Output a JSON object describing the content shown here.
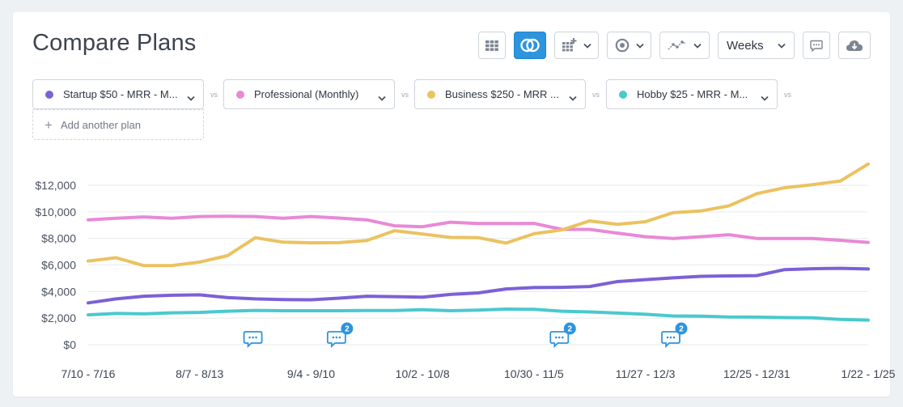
{
  "page": {
    "title": "Compare Plans"
  },
  "toolbar": {
    "grid_icon": "table-grid-icon",
    "compare_icon": "overlap-circles-icon",
    "calendar_icon": "calendar-add-icon",
    "target_icon": "target-icon",
    "line_icon": "line-chart-icon",
    "interval_label": "Weeks",
    "comment_icon": "comment-icon",
    "download_icon": "cloud-download-icon"
  },
  "plans": [
    {
      "label": "Startup $50 - MRR - M...",
      "color": "#7b61d6"
    },
    {
      "label": "Professional (Monthly)",
      "color": "#e889d6"
    },
    {
      "label": "Business $250 - MRR ...",
      "color": "#ebc260"
    },
    {
      "label": "Hobby $25 - MRR - M...",
      "color": "#4ac9cd"
    }
  ],
  "vs_label": "vs",
  "add_plan_label": "Add another plan",
  "annotations": [
    {
      "week_index": 6,
      "count": ""
    },
    {
      "week_index": 9,
      "count": "2"
    },
    {
      "week_index": 17,
      "count": "2"
    },
    {
      "week_index": 21,
      "count": "2"
    }
  ],
  "chart_data": {
    "type": "line",
    "title": "",
    "xlabel": "",
    "ylabel": "",
    "ylim": [
      0,
      12000
    ],
    "yticks": [
      0,
      2000,
      4000,
      6000,
      8000,
      10000,
      12000
    ],
    "ytick_labels": [
      "$0",
      "$2,000",
      "$4,000",
      "$6,000",
      "$8,000",
      "$10,000",
      "$12,000"
    ],
    "xtick_labels": [
      {
        "index": 0,
        "label": "7/10 - 7/16"
      },
      {
        "index": 4,
        "label": "8/7 - 8/13"
      },
      {
        "index": 8,
        "label": "9/4 - 9/10"
      },
      {
        "index": 12,
        "label": "10/2 - 10/8"
      },
      {
        "index": 16,
        "label": "10/30 - 11/5"
      },
      {
        "index": 20,
        "label": "11/27 - 12/3"
      },
      {
        "index": 24,
        "label": "12/25 - 12/31"
      },
      {
        "index": 28,
        "label": "1/22 - 1/25"
      }
    ],
    "grid": true,
    "series": [
      {
        "color": "#7b61d6",
        "values": [
          3150,
          3450,
          3650,
          3720,
          3750,
          3550,
          3450,
          3400,
          3380,
          3500,
          3650,
          3620,
          3580,
          3780,
          3900,
          4200,
          4300,
          4320,
          4380,
          4750,
          4900,
          5030,
          5150,
          5180,
          5200,
          5650,
          5720,
          5750,
          5700
        ]
      },
      {
        "color": "#e889d6",
        "values": [
          9400,
          9520,
          9620,
          9520,
          9650,
          9670,
          9650,
          9520,
          9650,
          9530,
          9400,
          8950,
          8880,
          9220,
          9120,
          9120,
          9130,
          8680,
          8680,
          8400,
          8130,
          8000,
          8130,
          8280,
          8000,
          8000,
          8000,
          7860,
          7700
        ]
      },
      {
        "color": "#ebc260",
        "values": [
          6300,
          6550,
          5950,
          5960,
          6220,
          6700,
          8050,
          7720,
          7670,
          7680,
          7840,
          8580,
          8330,
          8080,
          8060,
          7650,
          8350,
          8640,
          9320,
          9060,
          9260,
          9940,
          10070,
          10450,
          11370,
          11820,
          12050,
          12320,
          13600
        ]
      },
      {
        "color": "#4ac9cd",
        "values": [
          2250,
          2350,
          2320,
          2400,
          2430,
          2520,
          2580,
          2560,
          2560,
          2560,
          2570,
          2570,
          2640,
          2560,
          2600,
          2680,
          2660,
          2520,
          2470,
          2380,
          2290,
          2160,
          2150,
          2090,
          2080,
          2040,
          2020,
          1900,
          1850
        ]
      }
    ]
  }
}
